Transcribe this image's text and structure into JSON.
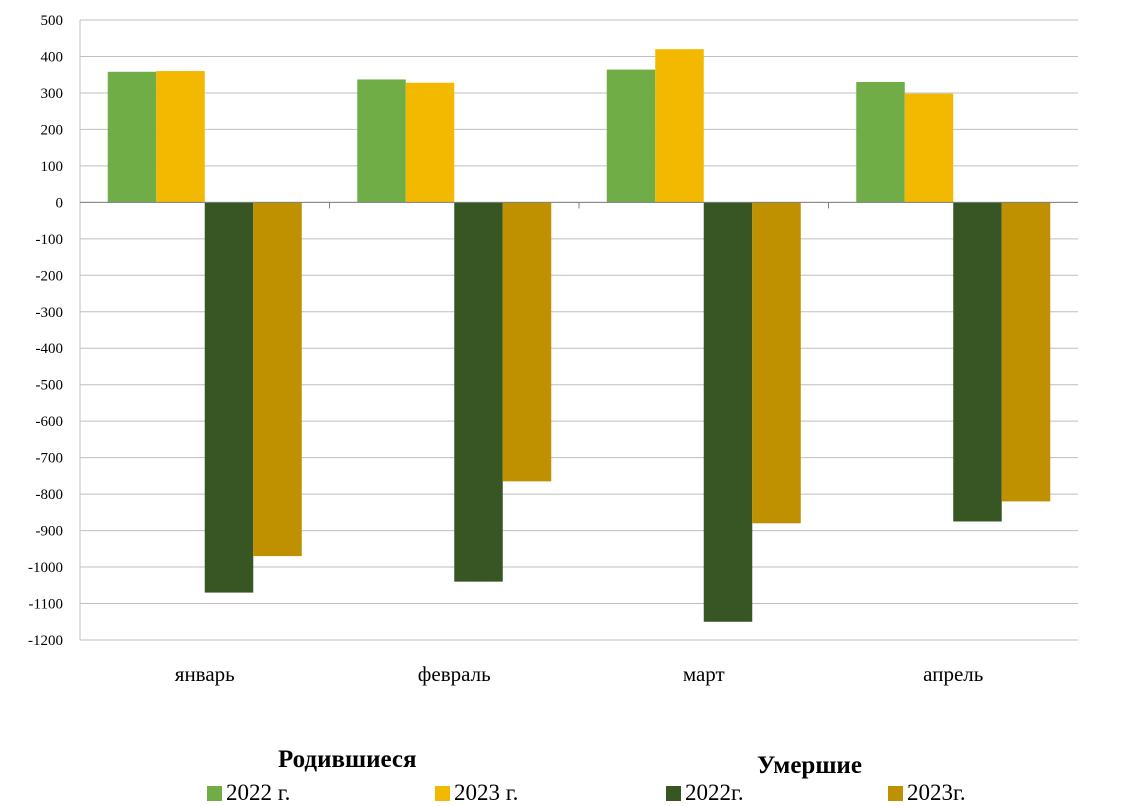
{
  "chart_data": {
    "type": "bar",
    "categories": [
      "январь",
      "февраль",
      "март",
      "апрель"
    ],
    "series": [
      {
        "name": "2022 г.",
        "group": "Родившиеся",
        "color": "#70ad47",
        "values": [
          358,
          337,
          364,
          330
        ]
      },
      {
        "name": "2023 г.",
        "group": "Родившиеся",
        "color": "#f2b900",
        "values": [
          360,
          328,
          420,
          298
        ]
      },
      {
        "name": "2022г.",
        "group": "Умершие",
        "color": "#375623",
        "values": [
          -1070,
          -1040,
          -1150,
          -875
        ]
      },
      {
        "name": "2023г.",
        "group": "Умершие",
        "color": "#bf9000",
        "values": [
          -970,
          -765,
          -880,
          -820
        ]
      }
    ],
    "ylim": [
      -1200,
      500
    ],
    "yticks": [
      500,
      400,
      300,
      200,
      100,
      0,
      -100,
      -200,
      -300,
      -400,
      -500,
      -600,
      -700,
      -800,
      -900,
      -1000,
      -1100,
      -1200
    ],
    "grid": true,
    "legend": {
      "placement": "bottom",
      "groups": [
        "Родившиеся",
        "Умершие"
      ]
    }
  }
}
